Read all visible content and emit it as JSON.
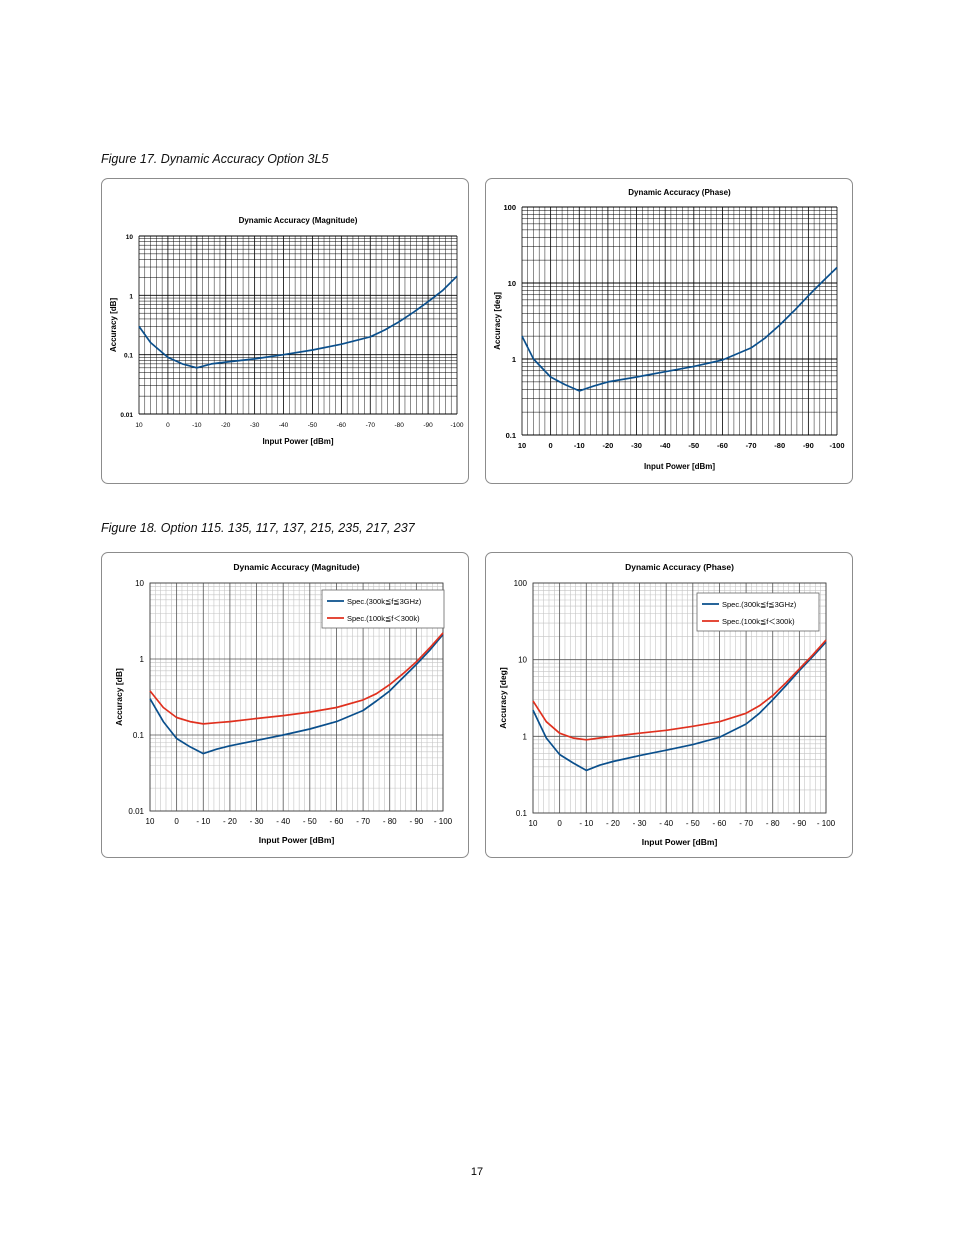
{
  "figure17": {
    "caption": "Figure 17. Dynamic Accuracy Option 3L5"
  },
  "figure18": {
    "caption": "Figure 18. Option 115. 135, 117, 137, 215, 235, 217, 237"
  },
  "page_number": "17",
  "colors": {
    "blue": "#0a4f8c",
    "red": "#e0301e",
    "grid": "#000000",
    "grid_light": "#b5b5b5"
  },
  "chart_data": [
    {
      "id": "fig17-magnitude",
      "type": "line",
      "title": "Dynamic Accuracy (Magnitude)",
      "xlabel": "Input Power [dBm]",
      "ylabel": "Accuracy [dB]",
      "yscale": "log",
      "ylim": [
        0.01,
        10
      ],
      "xlim": [
        10,
        -100
      ],
      "x_ticks": [
        10,
        0,
        -10,
        -20,
        -30,
        -40,
        -50,
        -60,
        -70,
        -80,
        -90,
        -100
      ],
      "x_tick_labels": [
        "10",
        "0",
        "-10",
        "-20",
        "-30",
        "-40",
        "-50",
        "-60",
        "-70",
        "-80",
        "-90",
        "-100"
      ],
      "y_ticks": [
        10,
        1,
        0.1,
        0.01
      ],
      "y_tick_labels": [
        "10",
        "1",
        "0.1",
        "0.01"
      ],
      "series": [
        {
          "name": "",
          "color": "blue",
          "x": [
            10,
            6,
            0,
            -5,
            -10,
            -15,
            -20,
            -30,
            -40,
            -50,
            -60,
            -70,
            -75,
            -80,
            -85,
            -90,
            -95,
            -100
          ],
          "y": [
            0.3,
            0.16,
            0.09,
            0.07,
            0.06,
            0.07,
            0.075,
            0.085,
            0.1,
            0.12,
            0.15,
            0.2,
            0.26,
            0.36,
            0.52,
            0.78,
            1.2,
            2.1
          ]
        }
      ]
    },
    {
      "id": "fig17-phase",
      "type": "line",
      "title": "Dynamic Accuracy (Phase)",
      "xlabel": "Input Power [dBm]",
      "ylabel": "Accuracy [deg]",
      "yscale": "log",
      "ylim": [
        0.1,
        100
      ],
      "xlim": [
        10,
        -100
      ],
      "x_ticks": [
        10,
        0,
        -10,
        -20,
        -30,
        -40,
        -50,
        -60,
        -70,
        -80,
        -90,
        -100
      ],
      "x_tick_labels": [
        "10",
        "0",
        "-10",
        "-20",
        "-30",
        "-40",
        "-50",
        "-60",
        "-70",
        "-80",
        "-90",
        "-100"
      ],
      "y_ticks": [
        100,
        10,
        1,
        0.1
      ],
      "y_tick_labels": [
        "100",
        "10",
        "1",
        "0.1"
      ],
      "series": [
        {
          "name": "",
          "color": "blue",
          "x": [
            10,
            6,
            0,
            -5,
            -10,
            -15,
            -20,
            -30,
            -40,
            -50,
            -60,
            -70,
            -75,
            -80,
            -85,
            -90,
            -95,
            -100
          ],
          "y": [
            2.0,
            1.0,
            0.58,
            0.46,
            0.38,
            0.44,
            0.5,
            0.58,
            0.68,
            0.8,
            0.97,
            1.4,
            1.9,
            2.8,
            4.3,
            6.8,
            10.5,
            16.0
          ]
        }
      ]
    },
    {
      "id": "fig18-magnitude",
      "type": "line",
      "title": "Dynamic Accuracy (Magnitude)",
      "xlabel": "Input Power [dBm]",
      "ylabel": "Accuracy [dB]",
      "yscale": "log",
      "ylim": [
        0.01,
        10
      ],
      "xlim": [
        10,
        -100
      ],
      "x_ticks": [
        10,
        0,
        -10,
        -20,
        -30,
        -40,
        -50,
        -60,
        -70,
        -80,
        -90,
        -100
      ],
      "x_tick_labels": [
        "10",
        "0",
        "- 10",
        "- 20",
        "- 30",
        "- 40",
        "- 50",
        "- 60",
        "- 70",
        "- 80",
        "- 90",
        "- 100"
      ],
      "y_ticks": [
        10,
        1,
        0.1,
        0.01
      ],
      "y_tick_labels": [
        "10",
        "1",
        "0.1",
        "0.01"
      ],
      "legend_position": "top-right",
      "series": [
        {
          "name": "Spec.(300k≦f≦3GHz)",
          "color": "blue",
          "x": [
            10,
            5,
            0,
            -5,
            -10,
            -15,
            -20,
            -30,
            -40,
            -50,
            -60,
            -70,
            -75,
            -80,
            -85,
            -90,
            -95,
            -100
          ],
          "y": [
            0.3,
            0.15,
            0.09,
            0.07,
            0.057,
            0.065,
            0.072,
            0.085,
            0.1,
            0.12,
            0.15,
            0.21,
            0.28,
            0.38,
            0.57,
            0.85,
            1.3,
            2.1
          ]
        },
        {
          "name": "Spec.(100k≦f＜300k)",
          "color": "red",
          "x": [
            10,
            5,
            0,
            -5,
            -10,
            -15,
            -20,
            -30,
            -40,
            -50,
            -60,
            -70,
            -75,
            -80,
            -85,
            -90,
            -95,
            -100
          ],
          "y": [
            0.38,
            0.23,
            0.17,
            0.15,
            0.14,
            0.145,
            0.15,
            0.165,
            0.18,
            0.2,
            0.23,
            0.29,
            0.35,
            0.46,
            0.64,
            0.92,
            1.4,
            2.2
          ]
        }
      ]
    },
    {
      "id": "fig18-phase",
      "type": "line",
      "title": "Dynamic Accuracy (Phase)",
      "xlabel": "Input Power [dBm]",
      "ylabel": "Accuracy [deg]",
      "yscale": "log",
      "ylim": [
        0.1,
        100
      ],
      "xlim": [
        10,
        -100
      ],
      "x_ticks": [
        10,
        0,
        -10,
        -20,
        -30,
        -40,
        -50,
        -60,
        -70,
        -80,
        -90,
        -100
      ],
      "x_tick_labels": [
        "10",
        "0",
        "- 10",
        "- 20",
        "- 30",
        "- 40",
        "- 50",
        "- 60",
        "- 70",
        "- 80",
        "- 90",
        "- 100"
      ],
      "y_ticks": [
        100,
        10,
        1,
        0.1
      ],
      "y_tick_labels": [
        "100",
        "10",
        "1",
        "0.1"
      ],
      "legend_position": "top-right",
      "series": [
        {
          "name": "Spec.(300k≦f≦3GHz)",
          "color": "blue",
          "x": [
            10,
            5,
            0,
            -5,
            -10,
            -15,
            -20,
            -30,
            -40,
            -50,
            -60,
            -70,
            -75,
            -80,
            -85,
            -90,
            -95,
            -100
          ],
          "y": [
            2.2,
            0.95,
            0.58,
            0.45,
            0.36,
            0.42,
            0.47,
            0.56,
            0.66,
            0.78,
            0.97,
            1.45,
            2.0,
            3.0,
            4.6,
            7.2,
            11.0,
            17.0
          ]
        },
        {
          "name": "Spec.(100k≦f＜300k)",
          "color": "red",
          "x": [
            10,
            5,
            0,
            -5,
            -10,
            -15,
            -20,
            -30,
            -40,
            -50,
            -60,
            -70,
            -75,
            -80,
            -85,
            -90,
            -95,
            -100
          ],
          "y": [
            2.9,
            1.55,
            1.1,
            0.95,
            0.9,
            0.95,
            1.0,
            1.1,
            1.2,
            1.35,
            1.55,
            2.0,
            2.5,
            3.4,
            5.0,
            7.6,
            11.5,
            18.0
          ]
        }
      ]
    }
  ]
}
